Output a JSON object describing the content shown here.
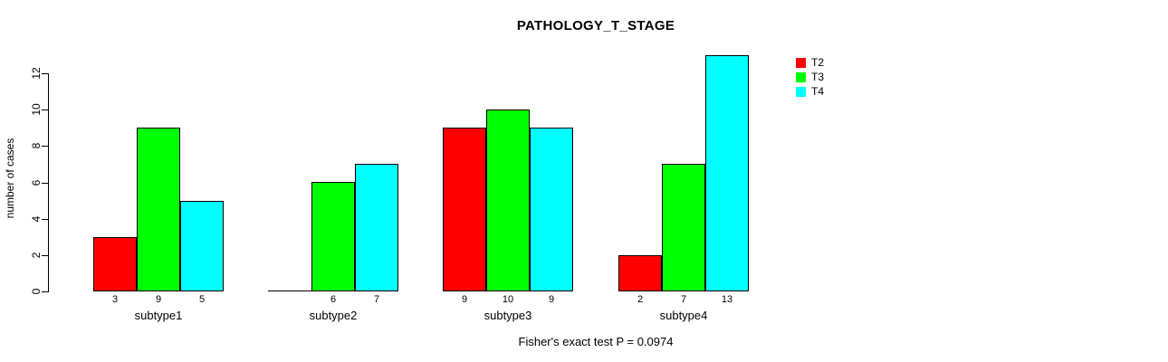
{
  "chart_data": {
    "type": "bar",
    "title": "PATHOLOGY_T_STAGE",
    "ylabel": "number of cases",
    "xlabel": "",
    "footnote": "Fisher's exact test P = 0.0974",
    "categories": [
      "subtype1",
      "subtype2",
      "subtype3",
      "subtype4"
    ],
    "series": [
      {
        "name": "T2",
        "color": "#ff0000",
        "values": [
          3,
          0,
          9,
          2
        ],
        "labels": [
          "3",
          "",
          "9",
          "2"
        ]
      },
      {
        "name": "T3",
        "color": "#00ff00",
        "values": [
          9,
          6,
          10,
          7
        ],
        "labels": [
          "9",
          "6",
          "10",
          "7"
        ]
      },
      {
        "name": "T4",
        "color": "#00ffff",
        "values": [
          5,
          7,
          9,
          13
        ],
        "labels": [
          "5",
          "7",
          "9",
          "13"
        ]
      }
    ],
    "ylim": [
      0,
      12
    ],
    "yticks": [
      0,
      2,
      4,
      6,
      8,
      10,
      12
    ],
    "grid": false,
    "legend_position": "top-right",
    "bar_border_color": "#000000",
    "background_color": "#ffffff"
  }
}
